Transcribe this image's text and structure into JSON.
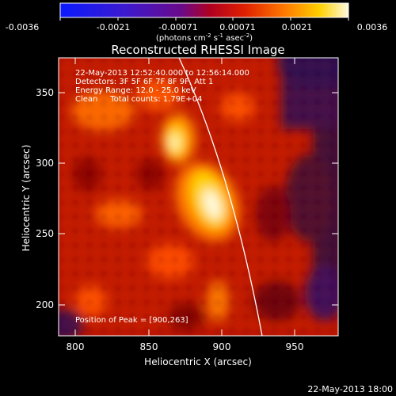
{
  "colorbar": {
    "ticks": [
      "-0.0036",
      "-0.0021",
      "-0.00071",
      "0.00071",
      "0.0021",
      "0.0036"
    ],
    "units_main": "(photons cm",
    "units_exp1": "-2",
    "units_mid": " s",
    "units_exp2": "-1",
    "units_tail": " asec",
    "units_exp3": "-2",
    "units_close": ")"
  },
  "plot": {
    "title": "Reconstructed RHESSI Image",
    "info": [
      "22-May-2013 12:52:40.000 to 12:56:14.000",
      "Detectors: 3F 5F 6F 7F 8F 9F, Att 1",
      "Energy Range: 12.0 - 25.0 keV",
      "Clean     Total counts: 1.79E+04"
    ],
    "peak_label": "Position of Peak = [900,263]",
    "xlabel": "Heliocentric X (arcsec)",
    "ylabel": "Heliocentric Y (arcsec)",
    "xticks": [
      "800",
      "850",
      "900",
      "950"
    ],
    "yticks": [
      "350",
      "300",
      "250",
      "200"
    ]
  },
  "footer": {
    "timestamp": "22-May-2013 18:00"
  }
}
